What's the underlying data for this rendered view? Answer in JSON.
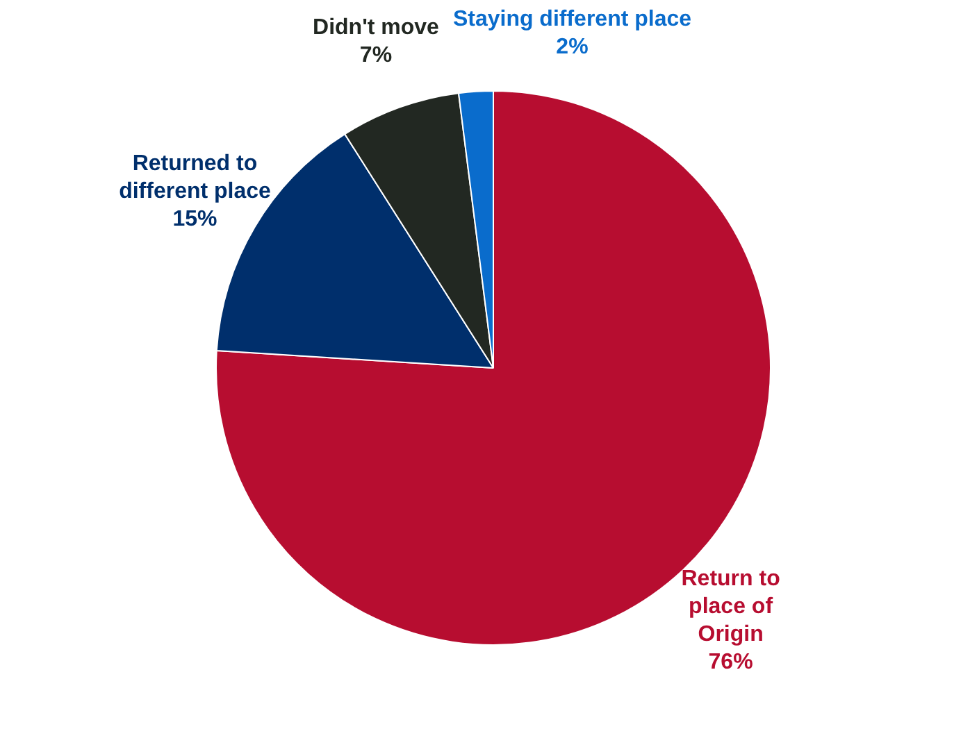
{
  "chart_data": {
    "type": "pie",
    "categories": [
      "Return to place of Origin",
      "Returned to different place",
      "Didn't move",
      "Staying different place"
    ],
    "values": [
      76,
      15,
      7,
      2
    ],
    "value_labels": [
      "76%",
      "15%",
      "7%",
      "2%"
    ],
    "colors": [
      "#b70d30",
      "#002f6c",
      "#222822",
      "#0a6ccc"
    ],
    "legend": false
  }
}
